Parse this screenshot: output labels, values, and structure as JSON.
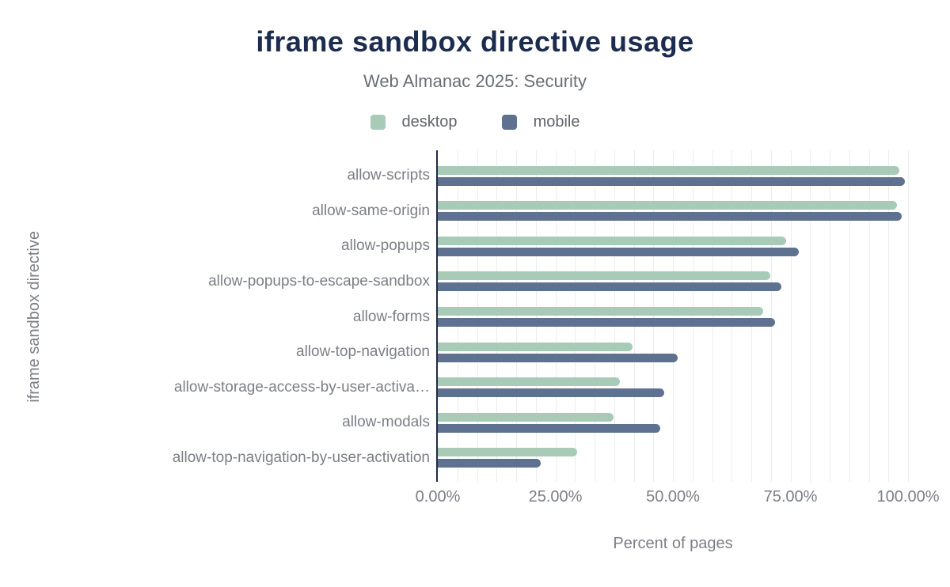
{
  "title": "iframe sandbox directive usage",
  "subtitle": "Web Almanac 2025: Security",
  "colors": {
    "desktop": "#a8cbb7",
    "mobile": "#5f7190",
    "title_text": "#1b2c4e",
    "axis_line": "#212b44",
    "label_text": "#7b7f87",
    "gridline": "#ededf0"
  },
  "legend": [
    {
      "label": "desktop",
      "color": "#a8cbb7"
    },
    {
      "label": "mobile",
      "color": "#5f7190"
    }
  ],
  "chart_data": {
    "type": "bar",
    "orientation": "horizontal",
    "title": "iframe sandbox directive usage",
    "subtitle": "Web Almanac 2025: Security",
    "xlabel": "Percent of pages",
    "ylabel": "iframe sandbox directive",
    "xlim": [
      0,
      100
    ],
    "x_ticks": [
      "0.00%",
      "25.00%",
      "50.00%",
      "75.00%",
      "100.00%"
    ],
    "x_tick_values": [
      0,
      25,
      50,
      75,
      100
    ],
    "grid": "minor vertical gridlines, 24 intervals",
    "legend_position": "top",
    "categories": [
      "allow-scripts",
      "allow-same-origin",
      "allow-popups",
      "allow-popups-to-escape-sandbox",
      "allow-forms",
      "allow-top-navigation",
      "allow-storage-access-by-user-activa…",
      "allow-modals",
      "allow-top-navigation-by-user-activation"
    ],
    "series": [
      {
        "name": "desktop",
        "color": "#a8cbb7",
        "values": [
          98.2,
          97.6,
          74.0,
          70.7,
          69.2,
          41.4,
          38.7,
          37.4,
          29.6
        ]
      },
      {
        "name": "mobile",
        "color": "#5f7190",
        "values": [
          99.4,
          98.6,
          76.8,
          73.0,
          71.7,
          51.0,
          48.1,
          47.3,
          21.9
        ]
      }
    ]
  }
}
